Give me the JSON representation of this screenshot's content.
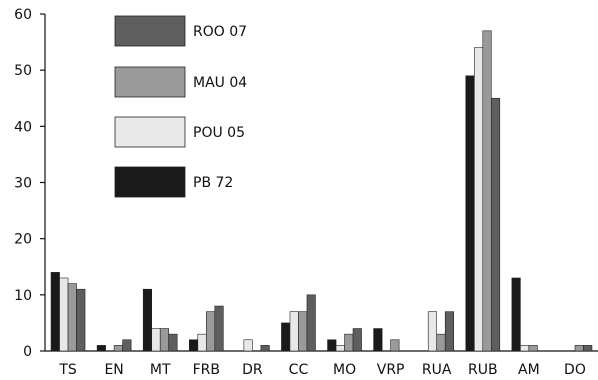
{
  "chart_data": {
    "type": "bar",
    "title": "",
    "xlabel": "",
    "ylabel": "",
    "ylim": [
      0,
      60
    ],
    "yticks": [
      0,
      10,
      20,
      30,
      40,
      50,
      60
    ],
    "grid": false,
    "legend_position": "top-left",
    "categories": [
      "TS",
      "EN",
      "MT",
      "FRB",
      "DR",
      "CC",
      "MO",
      "VRP",
      "RUA",
      "RUB",
      "AM",
      "DO"
    ],
    "series": [
      {
        "name": "PB 72",
        "color": "#1a1a1a",
        "values": [
          14,
          1,
          11,
          2,
          0,
          5,
          2,
          4,
          0,
          49,
          13,
          0
        ]
      },
      {
        "name": "POU 05",
        "color": "#e8e8e8",
        "values": [
          13,
          0,
          4,
          3,
          2,
          7,
          1,
          0,
          7,
          54,
          1,
          0
        ]
      },
      {
        "name": "MAU 04",
        "color": "#9a9a9a",
        "values": [
          12,
          1,
          4,
          7,
          0,
          7,
          3,
          2,
          3,
          57,
          1,
          1
        ]
      },
      {
        "name": "ROO 07",
        "color": "#5e5e5e",
        "values": [
          11,
          2,
          3,
          8,
          1,
          10,
          4,
          0,
          7,
          45,
          0,
          1
        ]
      }
    ],
    "legend_order": [
      "ROO 07",
      "MAU 04",
      "POU 05",
      "PB 72"
    ]
  }
}
